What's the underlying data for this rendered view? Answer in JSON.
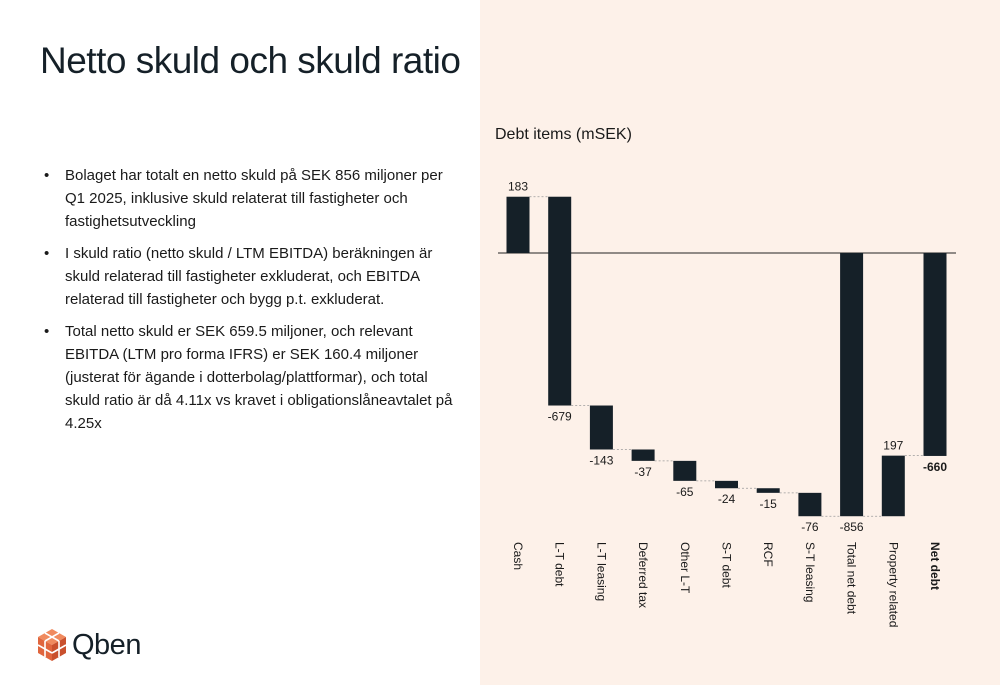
{
  "slide": {
    "title": "Netto skuld och skuld ratio",
    "bullets": [
      "Bolaget har totalt en netto skuld på SEK 856 miljoner per Q1 2025, inklusive skuld relaterat till fastigheter och fastighetsutveckling",
      "I skuld ratio (netto skuld / LTM EBITDA) beräkningen är skuld relaterad till fastigheter exkluderat, och EBITDA relaterad till fastigheter och bygg p.t. exkluderat.",
      "Total netto skuld er SEK 659.5 miljoner, och relevant EBITDA (LTM pro forma IFRS) er SEK 160.4 miljoner (justerat för ägande i dotterbolag/plattformar), och total skuld ratio är då 4.11x vs kravet i obligationslåneavtalet på 4.25x"
    ],
    "bullet_char": "•",
    "logo_text": "Qben",
    "colors": {
      "bar": "#152028",
      "panel": "#fdf1e9",
      "logo_accent": "#e8704a"
    }
  },
  "chart_data": {
    "type": "waterfall",
    "title": "Debt items (mSEK)",
    "categories": [
      "Cash",
      "L-T debt",
      "L-T leasing",
      "Deferred tax",
      "Other L-T",
      "S-T debt",
      "RCF",
      "S-T leasing",
      "Total net debt",
      "Property related",
      "Net debt"
    ],
    "values": [
      183,
      -679,
      -143,
      -37,
      -65,
      -24,
      -15,
      -76,
      -856,
      197,
      -660
    ],
    "labels": [
      "183",
      "-679",
      "-143",
      "-37",
      "-65",
      "-24",
      "-15",
      "-76",
      "-856",
      "197",
      "-660"
    ],
    "totals": [
      false,
      false,
      false,
      false,
      false,
      false,
      false,
      false,
      true,
      false,
      true
    ],
    "bold": [
      false,
      false,
      false,
      false,
      false,
      false,
      false,
      false,
      false,
      false,
      true
    ],
    "ylim": [
      -856,
      183
    ],
    "grid": false,
    "legend": "none"
  }
}
